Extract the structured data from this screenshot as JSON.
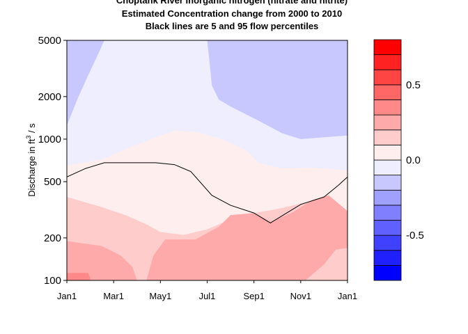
{
  "chart_data": {
    "type": "heatmap",
    "title_lines": [
      "Choptank River  Inorganic nitrogen (nitrate and nitrite)",
      "Estimated Concentration change from 2000 to 2010",
      "Black lines are 5 and 95 flow percentiles"
    ],
    "ylabel_parts": [
      "Discharge in ft",
      "3",
      " / s"
    ],
    "y_scale": "log",
    "ylim": [
      100,
      5000
    ],
    "y_ticks": [
      100,
      200,
      500,
      1000,
      2000,
      5000
    ],
    "y_tick_labels": [
      "100",
      "200",
      "500",
      "1000",
      "2000",
      "5000"
    ],
    "xlim": [
      0,
      12
    ],
    "x_ticks": [
      0,
      2,
      4,
      6,
      8,
      10,
      12
    ],
    "x_tick_labels": [
      "Jan1",
      "Mar1",
      "May1",
      "Jul1",
      "Sep1",
      "Nov1",
      "Jan1"
    ],
    "colorbar": {
      "levels": [
        -0.8,
        -0.7,
        -0.6,
        -0.5,
        -0.4,
        -0.3,
        -0.2,
        -0.1,
        0.0,
        0.1,
        0.2,
        0.3,
        0.4,
        0.5,
        0.6,
        0.7,
        0.8
      ],
      "colors": [
        "#0000FF",
        "#2020FF",
        "#4040FF",
        "#6060FF",
        "#8080FF",
        "#A0A0FF",
        "#C8C8FF",
        "#EEEEFF",
        "#FFEEEE",
        "#FFCCCC",
        "#FFAAAA",
        "#FF8888",
        "#FF6666",
        "#FF4444",
        "#FF2222",
        "#FF0000"
      ],
      "ticks": [
        -0.5,
        0.0,
        0.5
      ],
      "tick_labels": [
        "-0.5",
        "0.0",
        "0.5"
      ]
    },
    "background_color": "#EEEEFF",
    "regions": [
      {
        "name": "blue-upper-left",
        "color": "#C8C8FF",
        "points": [
          [
            0,
            5000
          ],
          [
            1.6,
            5000
          ],
          [
            1.4,
            4200
          ],
          [
            0.9,
            2800
          ],
          [
            0.5,
            2000
          ],
          [
            0,
            1250
          ]
        ]
      },
      {
        "name": "blue-upper-right",
        "color": "#C8C8FF",
        "points": [
          [
            6.0,
            5000
          ],
          [
            12,
            5000
          ],
          [
            12,
            1060
          ],
          [
            11.0,
            1030
          ],
          [
            10.0,
            1000
          ],
          [
            9.2,
            1100
          ],
          [
            8.2,
            1350
          ],
          [
            7.0,
            1700
          ],
          [
            6.5,
            1900
          ],
          [
            6.2,
            2400
          ],
          [
            6.1,
            3500
          ]
        ]
      },
      {
        "name": "pink-light",
        "color": "#FFEEEE",
        "points": [
          [
            0,
            650
          ],
          [
            1.5,
            720
          ],
          [
            2.6,
            860
          ],
          [
            3.6,
            1000
          ],
          [
            4.6,
            1150
          ],
          [
            5.6,
            1120
          ],
          [
            6.6,
            1000
          ],
          [
            7.6,
            850
          ],
          [
            8.2,
            680
          ],
          [
            9.2,
            620
          ],
          [
            10.5,
            630
          ],
          [
            12,
            600
          ],
          [
            12,
            100
          ],
          [
            0,
            100
          ]
        ]
      },
      {
        "name": "pink-medium",
        "color": "#FFCCCC",
        "points": [
          [
            0,
            390
          ],
          [
            1.5,
            330
          ],
          [
            2.5,
            290
          ],
          [
            3.4,
            250
          ],
          [
            4.0,
            220
          ],
          [
            5.0,
            210
          ],
          [
            6.0,
            230
          ],
          [
            7.0,
            270
          ],
          [
            8.0,
            300
          ],
          [
            9.0,
            320
          ],
          [
            10.0,
            350
          ],
          [
            11.0,
            380
          ],
          [
            12,
            300
          ],
          [
            12,
            100
          ],
          [
            0,
            100
          ]
        ]
      },
      {
        "name": "pink-dark-left",
        "color": "#FFAAAA",
        "points": [
          [
            0,
            190
          ],
          [
            1.5,
            175
          ],
          [
            2.3,
            150
          ],
          [
            2.8,
            125
          ],
          [
            3.0,
            100
          ],
          [
            0,
            100
          ]
        ]
      },
      {
        "name": "pink-dark-mid",
        "color": "#FFAAAA",
        "points": [
          [
            3.4,
            100
          ],
          [
            3.7,
            150
          ],
          [
            4.2,
            195
          ],
          [
            5.5,
            195
          ],
          [
            6.5,
            240
          ],
          [
            7.0,
            290
          ],
          [
            8.0,
            300
          ],
          [
            8.7,
            260
          ],
          [
            9.6,
            300
          ],
          [
            10.5,
            370
          ],
          [
            11.2,
            400
          ],
          [
            12,
            310
          ],
          [
            12,
            100
          ]
        ]
      },
      {
        "name": "pink-medium-low-right",
        "color": "#FFCCCC",
        "points": [
          [
            10.2,
            100
          ],
          [
            11.0,
            130
          ],
          [
            11.5,
            165
          ],
          [
            12,
            170
          ],
          [
            12,
            100
          ]
        ]
      },
      {
        "name": "pink-darker-corner",
        "color": "#FF8888",
        "points": [
          [
            0,
            113
          ],
          [
            0.9,
            113
          ],
          [
            1.0,
            105
          ],
          [
            1.0,
            100
          ],
          [
            0,
            100
          ]
        ]
      }
    ],
    "flow_line": [
      [
        0,
        540
      ],
      [
        0.8,
        620
      ],
      [
        1.6,
        680
      ],
      [
        2.6,
        680
      ],
      [
        3.8,
        680
      ],
      [
        4.6,
        660
      ],
      [
        5.3,
        590
      ],
      [
        6.2,
        400
      ],
      [
        7.0,
        340
      ],
      [
        8.0,
        300
      ],
      [
        8.7,
        255
      ],
      [
        9.4,
        300
      ],
      [
        10.0,
        345
      ],
      [
        11.0,
        390
      ],
      [
        11.6,
        470
      ],
      [
        12,
        540
      ]
    ]
  }
}
